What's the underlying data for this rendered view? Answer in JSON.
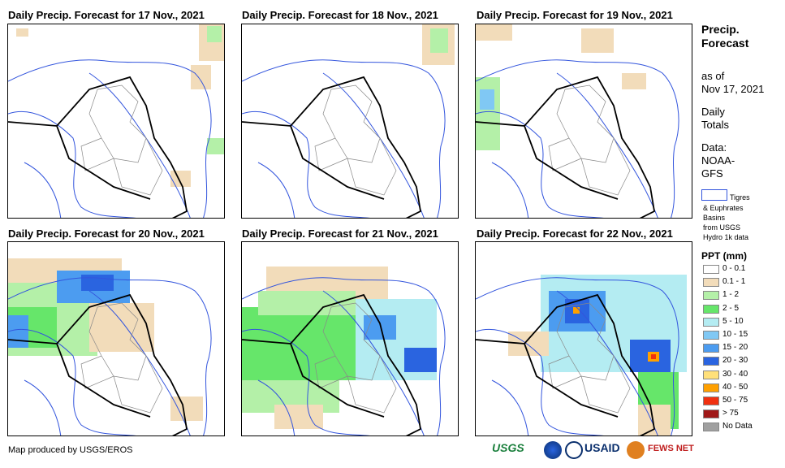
{
  "panels": [
    {
      "title": "Daily Precip. Forecast for 17 Nov., 2021"
    },
    {
      "title": "Daily Precip. Forecast for 18 Nov., 2021"
    },
    {
      "title": "Daily Precip. Forecast for 19 Nov., 2021"
    },
    {
      "title": "Daily Precip. Forecast for 20 Nov., 2021"
    },
    {
      "title": "Daily Precip. Forecast for 21 Nov., 2021"
    },
    {
      "title": "Daily Precip. Forecast for 22 Nov., 2021"
    }
  ],
  "sidebar": {
    "title_line1": "Precip.",
    "title_line2": "Forecast",
    "asof_line1": "as of",
    "asof_line2": "Nov 17, 2021",
    "daily_line1": "Daily",
    "daily_line2": "Totals",
    "data_line1": "Data:",
    "data_line2": "NOAA-",
    "data_line3": "GFS",
    "basin_line1": "Tigres",
    "basin_line2": "& Euphrates",
    "basin_line3": "Basins",
    "basin_line4": "from USGS",
    "basin_line5": "Hydro 1k data"
  },
  "legend": {
    "title": "PPT (mm)",
    "entries": [
      {
        "label": "0 - 0.1",
        "color": "#ffffff"
      },
      {
        "label": "0.1 - 1",
        "color": "#f2dcba"
      },
      {
        "label": "1 - 2",
        "color": "#b4f0a8"
      },
      {
        "label": "2 - 5",
        "color": "#66e66a"
      },
      {
        "label": "5 - 10",
        "color": "#b4ecf2"
      },
      {
        "label": "10 - 15",
        "color": "#80c8f4"
      },
      {
        "label": "15 - 20",
        "color": "#4c9cf0"
      },
      {
        "label": "20 - 30",
        "color": "#2a64e0"
      },
      {
        "label": "30 - 40",
        "color": "#ffe07a"
      },
      {
        "label": "40 - 50",
        "color": "#ffa000"
      },
      {
        "label": "50 - 75",
        "color": "#f03010"
      },
      {
        "label": "> 75",
        "color": "#a01818"
      },
      {
        "label": "No Data",
        "color": "#a0a0a0"
      }
    ]
  },
  "footer": {
    "credit": "Map produced by USGS/EROS",
    "usgs": "USGS",
    "usaid": "USAID",
    "fews": "FEWS NET"
  }
}
